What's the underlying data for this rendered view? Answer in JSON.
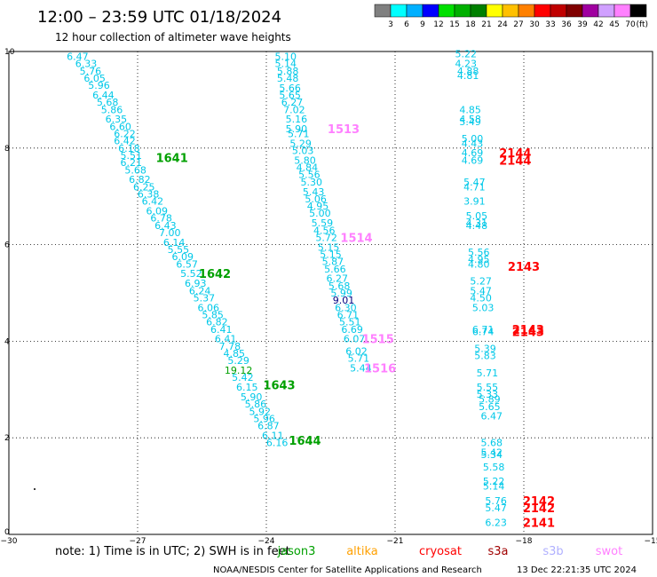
{
  "title": "12:00 – 23:59 UTC 01/18/2024",
  "subtitle": "12 hour collection of altimeter wave heights",
  "colorbar": {
    "labels": [
      "3",
      "6",
      "9",
      "12",
      "15",
      "18",
      "21",
      "24",
      "27",
      "30",
      "33",
      "36",
      "39",
      "42",
      "45",
      "70"
    ],
    "unit": "(ft)",
    "colors": [
      "#808080",
      "#00ffff",
      "#00b0ff",
      "#0000ff",
      "#00e000",
      "#00b000",
      "#008000",
      "#ffff00",
      "#ffc000",
      "#ff8000",
      "#ff0000",
      "#c00000",
      "#800000",
      "#a000a0",
      "#d0a0ff",
      "#ff80ff",
      "#000000"
    ]
  },
  "note": "note: 1) Time is in UTC; 2) SWH is in feet",
  "satellites": [
    {
      "name": "jason3",
      "color": "#00a000"
    },
    {
      "name": "altika",
      "color": "#ffa000"
    },
    {
      "name": "cryosat",
      "color": "#ff0000"
    },
    {
      "name": "s3a",
      "color": "#a00000"
    },
    {
      "name": "s3b",
      "color": "#b0b0ff"
    },
    {
      "name": "swot",
      "color": "#ff80ff"
    }
  ],
  "footer": {
    "credit": "NOAA/NESDIS Center for Satellite Applications and Research",
    "timestamp": "13 Dec 22:21:35 UTC 2024"
  },
  "chart_data": {
    "type": "scatter",
    "xlim": [
      -30,
      -15
    ],
    "ylim": [
      0,
      10
    ],
    "x_ticks": [
      "−30",
      "−27",
      "−24",
      "−21",
      "−18",
      "−15"
    ],
    "y_ticks": [
      "0",
      "2",
      "4",
      "6",
      "8",
      "10"
    ],
    "grid": true,
    "series": [
      {
        "color": "#00c8e8",
        "points": [
          [
            -28.4,
            9.9,
            "6.47"
          ],
          [
            -28.2,
            9.75,
            "6.33"
          ],
          [
            -28.1,
            9.6,
            "5.76"
          ],
          [
            -28.0,
            9.45,
            "6.05"
          ],
          [
            -27.9,
            9.3,
            "5.96"
          ],
          [
            -27.8,
            9.1,
            "6.44"
          ],
          [
            -27.7,
            8.95,
            "5.68"
          ],
          [
            -27.6,
            8.8,
            "5.86"
          ],
          [
            -27.5,
            8.6,
            "6.35"
          ],
          [
            -27.4,
            8.45,
            "6.60"
          ],
          [
            -27.3,
            8.3,
            "6.22"
          ],
          [
            -27.3,
            8.15,
            "6.42"
          ],
          [
            -27.2,
            8.0,
            "6.18"
          ],
          [
            -27.15,
            7.85,
            "5.51"
          ],
          [
            -27.15,
            7.7,
            "6.21"
          ],
          [
            -27.05,
            7.55,
            "5.68"
          ],
          [
            -26.95,
            7.35,
            "6.82"
          ],
          [
            -26.85,
            7.2,
            "6.25"
          ],
          [
            -26.75,
            7.05,
            "6.38"
          ],
          [
            -26.65,
            6.9,
            "6.42"
          ],
          [
            -26.55,
            6.7,
            "6.09"
          ],
          [
            -26.45,
            6.55,
            "6.78"
          ],
          [
            -26.35,
            6.4,
            "6.43"
          ],
          [
            -26.25,
            6.25,
            "7.00"
          ],
          [
            -26.15,
            6.05,
            "6.14"
          ],
          [
            -26.05,
            5.9,
            "5.55"
          ],
          [
            -25.95,
            5.75,
            "6.09"
          ],
          [
            -25.85,
            5.6,
            "6.57"
          ],
          [
            -25.75,
            5.4,
            "5.52"
          ],
          [
            -25.65,
            5.2,
            "6.93"
          ],
          [
            -25.55,
            5.05,
            "6.24"
          ],
          [
            -25.45,
            4.9,
            "5.37"
          ],
          [
            -25.35,
            4.7,
            "6.06"
          ],
          [
            -25.25,
            4.55,
            "5.85"
          ],
          [
            -25.15,
            4.4,
            "6.82"
          ],
          [
            -25.05,
            4.25,
            "6.41"
          ],
          [
            -24.95,
            4.05,
            "6.41"
          ],
          [
            -24.85,
            3.9,
            "7.78"
          ],
          [
            -24.75,
            3.75,
            "4.85"
          ],
          [
            -24.65,
            3.6,
            "5.29"
          ],
          [
            -24.55,
            3.25,
            "5.42"
          ],
          [
            -24.45,
            3.05,
            "6.15"
          ],
          [
            -24.35,
            2.85,
            "5.90"
          ],
          [
            -24.25,
            2.7,
            "5.86"
          ],
          [
            -24.15,
            2.55,
            "5.92"
          ],
          [
            -24.05,
            2.4,
            "5.96"
          ],
          [
            -23.95,
            2.25,
            "6.87"
          ],
          [
            -23.85,
            2.05,
            "6.11"
          ],
          [
            -23.75,
            1.9,
            "6.16"
          ],
          [
            -23.55,
            9.9,
            "5.10"
          ],
          [
            -23.55,
            9.75,
            "5.14"
          ],
          [
            -23.5,
            9.6,
            "5.88"
          ],
          [
            -23.5,
            9.45,
            "5.48"
          ],
          [
            -23.45,
            9.25,
            "5.66"
          ],
          [
            -23.45,
            9.1,
            "5.65"
          ],
          [
            -23.4,
            8.95,
            "6.27"
          ],
          [
            -23.35,
            8.8,
            "7.02"
          ],
          [
            -23.3,
            8.6,
            "5.16"
          ],
          [
            -23.3,
            8.4,
            "5.90"
          ],
          [
            -23.25,
            8.3,
            "5.71"
          ],
          [
            -23.2,
            8.1,
            "5.29"
          ],
          [
            -23.15,
            7.95,
            "5.03"
          ],
          [
            -23.1,
            7.75,
            "5.80"
          ],
          [
            -23.05,
            7.6,
            "4.84"
          ],
          [
            -23.0,
            7.45,
            "5.56"
          ],
          [
            -22.95,
            7.3,
            "5.30"
          ],
          [
            -22.9,
            7.1,
            "5.43"
          ],
          [
            -22.85,
            6.95,
            "5.06"
          ],
          [
            -22.8,
            6.8,
            "4.95"
          ],
          [
            -22.75,
            6.65,
            "5.00"
          ],
          [
            -22.7,
            6.45,
            "5.59"
          ],
          [
            -22.65,
            6.3,
            "4.56"
          ],
          [
            -22.6,
            6.15,
            "5.72"
          ],
          [
            -22.55,
            5.95,
            "5.15"
          ],
          [
            -22.5,
            5.8,
            "5.15"
          ],
          [
            -22.45,
            5.65,
            "5.87"
          ],
          [
            -22.4,
            5.5,
            "5.66"
          ],
          [
            -22.35,
            5.3,
            "6.27"
          ],
          [
            -22.3,
            5.15,
            "5.68"
          ],
          [
            -22.25,
            5.0,
            "5.99"
          ],
          [
            -22.15,
            4.7,
            "6.30"
          ],
          [
            -22.1,
            4.55,
            "6.71"
          ],
          [
            -22.05,
            4.4,
            "5.51"
          ],
          [
            -22.0,
            4.25,
            "6.69"
          ],
          [
            -21.95,
            4.05,
            "6.07"
          ],
          [
            -21.9,
            3.8,
            "6.02"
          ],
          [
            -21.85,
            3.65,
            "5.71"
          ],
          [
            -21.8,
            3.45,
            "5.44"
          ],
          [
            -19.35,
            9.95,
            "5.22"
          ],
          [
            -19.35,
            9.75,
            "4.23"
          ],
          [
            -19.3,
            9.6,
            "4.88"
          ],
          [
            -19.3,
            9.5,
            "4.81"
          ],
          [
            -19.25,
            8.8,
            "4.85"
          ],
          [
            -19.25,
            8.6,
            "4.58"
          ],
          [
            -19.25,
            8.55,
            "5.49"
          ],
          [
            -19.2,
            8.2,
            "5.00"
          ],
          [
            -19.2,
            8.1,
            "4.43"
          ],
          [
            -19.2,
            7.9,
            "4.69"
          ],
          [
            -19.2,
            7.75,
            "4.69"
          ],
          [
            -19.15,
            7.3,
            "5.47"
          ],
          [
            -19.15,
            7.2,
            "4.71"
          ],
          [
            -19.15,
            6.9,
            "3.91"
          ],
          [
            -19.1,
            6.6,
            "5.05"
          ],
          [
            -19.1,
            6.45,
            "4.31"
          ],
          [
            -19.1,
            6.4,
            "4.48"
          ],
          [
            -19.05,
            5.85,
            "5.56"
          ],
          [
            -19.05,
            5.7,
            "4.95"
          ],
          [
            -19.05,
            5.6,
            "4.80"
          ],
          [
            -19.0,
            5.25,
            "5.27"
          ],
          [
            -19.0,
            5.05,
            "5.47"
          ],
          [
            -19.0,
            4.9,
            "4.50"
          ],
          [
            -18.95,
            4.7,
            "5.03"
          ],
          [
            -18.95,
            4.25,
            "6.71"
          ],
          [
            -18.95,
            4.2,
            "6.74"
          ],
          [
            -18.9,
            3.85,
            "5.39"
          ],
          [
            -18.9,
            3.7,
            "5.83"
          ],
          [
            -18.85,
            3.35,
            "5.71"
          ],
          [
            -18.85,
            3.05,
            "5.55"
          ],
          [
            -18.85,
            2.9,
            "5.33"
          ],
          [
            -18.8,
            2.8,
            "5.89"
          ],
          [
            -18.8,
            2.65,
            "5.65"
          ],
          [
            -18.75,
            2.45,
            "6.47"
          ],
          [
            -18.75,
            1.9,
            "5.68"
          ],
          [
            -18.75,
            1.7,
            "5.42"
          ],
          [
            -18.75,
            1.65,
            "5.34"
          ],
          [
            -18.7,
            1.4,
            "5.58"
          ],
          [
            -18.7,
            1.1,
            "5.22"
          ],
          [
            -18.7,
            1.0,
            "5.14"
          ],
          [
            -18.65,
            0.7,
            "5.76"
          ],
          [
            -18.65,
            0.55,
            "5.47"
          ],
          [
            -18.65,
            0.25,
            "6.23"
          ]
        ]
      },
      {
        "color": "#00a000",
        "points": [
          [
            -24.65,
            3.4,
            "19.12"
          ]
        ]
      },
      {
        "color": "#000080",
        "points": [
          [
            -22.2,
            4.85,
            "9.01"
          ]
        ]
      }
    ],
    "pass_labels": [
      {
        "x": -26.2,
        "y": 7.8,
        "text": "1641",
        "color": "#00a000"
      },
      {
        "x": -25.2,
        "y": 5.4,
        "text": "1642",
        "color": "#00a000"
      },
      {
        "x": -23.7,
        "y": 3.1,
        "text": "1643",
        "color": "#00a000"
      },
      {
        "x": -23.1,
        "y": 1.95,
        "text": "1644",
        "color": "#00a000"
      },
      {
        "x": -22.2,
        "y": 8.4,
        "text": "1513",
        "color": "#ff80ff"
      },
      {
        "x": -21.9,
        "y": 6.15,
        "text": "1514",
        "color": "#ff80ff"
      },
      {
        "x": -21.4,
        "y": 4.05,
        "text": "1515",
        "color": "#ff80ff"
      },
      {
        "x": -21.35,
        "y": 3.45,
        "text": "1516",
        "color": "#ff80ff"
      },
      {
        "x": -18.2,
        "y": 7.9,
        "text": "2144",
        "color": "#ff0000"
      },
      {
        "x": -18.2,
        "y": 7.75,
        "text": "2144",
        "color": "#ff0000"
      },
      {
        "x": -18.0,
        "y": 5.55,
        "text": "2143",
        "color": "#ff0000"
      },
      {
        "x": -17.9,
        "y": 4.25,
        "text": "2143",
        "color": "#ff0000"
      },
      {
        "x": -17.9,
        "y": 4.2,
        "text": "2143",
        "color": "#ff0000"
      },
      {
        "x": -17.65,
        "y": 0.7,
        "text": "2142",
        "color": "#ff0000"
      },
      {
        "x": -17.65,
        "y": 0.55,
        "text": "2142",
        "color": "#ff0000"
      },
      {
        "x": -17.65,
        "y": 0.25,
        "text": "2141",
        "color": "#ff0000"
      }
    ]
  }
}
